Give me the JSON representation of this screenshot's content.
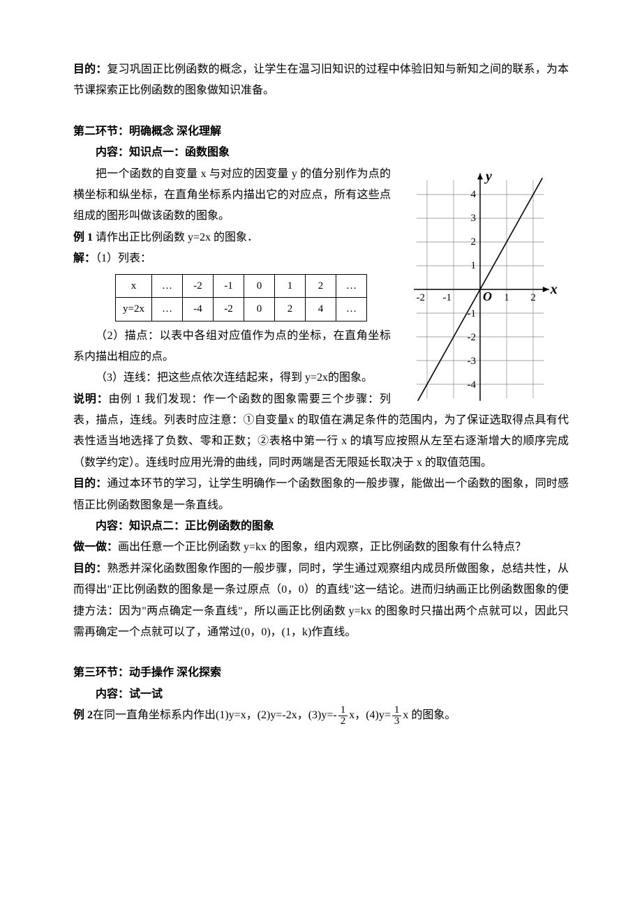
{
  "intro": {
    "purpose_label": "目的：",
    "purpose_text": "复习巩固正比例函数的概念，让学生在温习旧知识的过程中体验旧知与新知之间的联系，为本节课探索正比例函数的图象做知识准备。"
  },
  "section2": {
    "title": "第二环节：明确概念 深化理解",
    "kp1_title": "内容：知识点一：函数图象",
    "kp1_para1": "把一个函数的自变量 x 与对应的因变量 y 的值分别作为点的横坐标和纵坐标，在直角坐标系内描出它的对应点，所有这些点组成的图形叫做该函数的图象。",
    "ex1_label": "例 1",
    "ex1_text": "  请作出正比例函数 y=2x 的图象．",
    "solve_label": "解：",
    "solve_text": "（1）列表：",
    "table": {
      "row1": [
        "x",
        "…",
        "-2",
        "-1",
        "0",
        "1",
        "2",
        "…"
      ],
      "row2": [
        "y=2x",
        "…",
        "-4",
        "-2",
        "0",
        "2",
        "4",
        "…"
      ]
    },
    "step2": "（2）描点：以表中各组对应值作为点的坐标，在直角坐标系内描出相应的点。",
    "step3": "（3）连线：把这些点依次连结起来，得到 y=2x的图象。",
    "note_label": "说明：",
    "note_text": "由例 1 我们发现：作一个函数的图象需要三个步骤：列表，描点，连线。列表时应注意：①自变量x 的取值在满足条件的范围内，为了保证选取得点具有代表性适当地选择了负数、零和正数；②表格中第一行 x 的填写应按照从左至右逐渐增大的顺序完成（数学约定）。连线时应用光滑的曲线，同时两端是否无限延长取决于 x 的取值范围。",
    "purpose2_label": "目的：",
    "purpose2_text": "通过本环节的学习，让学生明确作一个函数图象的一般步骤，能做出一个函数的图象，同时感悟正比例函数图象是一条直线。",
    "kp2_title": "内容：知识点二：正比例函数的图象",
    "do_label": "做一做：",
    "do_text": "画出任意一个正比例函数 y=kx 的图象，组内观察，正比例函数的图象有什么特点？",
    "purpose3_label": "目的：",
    "purpose3_text": "熟悉并深化函数图象作图的一般步骤，同时，学生通过观察组内成员所做图象，总结共性，从而得出\"正比例函数的图象是一条过原点（0，0）的直线\"这一结论。进而归纳画正比例函数图象的便捷方法：因为\"两点确定一条直线\"，所以画正比例函数 y=kx 的图象时只描出两个点就可以，因此只需再确定一个点就可以了，通常过(0，0)，(1，k)作直线。"
  },
  "section3": {
    "title": "第三环节：动手操作 深化探索",
    "content_title": "内容：试一试",
    "ex2_label": "例 2",
    "ex2_a": " 在同一直角坐标系内作出(1)y=x，(2)y=-2x，(3)y=-",
    "ex2_b": "x，(4)y=",
    "ex2_c": "x 的图象。",
    "frac1_num": "1",
    "frac1_den": "2",
    "frac2_num": "1",
    "frac2_den": "3"
  },
  "graph": {
    "xlabel": "x",
    "ylabel": "y",
    "axis_color": "#000000",
    "grid_color": "#888888",
    "line_color": "#000000",
    "tick_fontsize": 15,
    "label_fontsize": 20,
    "x_ticks": [
      -2,
      -1,
      1,
      2
    ],
    "y_ticks": [
      -4,
      -3,
      -2,
      -1,
      1,
      2,
      3,
      4
    ],
    "origin_label": "O",
    "line_slope": 2,
    "x_range": [
      -2.6,
      2.6
    ],
    "y_range": [
      -4.8,
      4.8
    ],
    "grid_step": 1
  }
}
